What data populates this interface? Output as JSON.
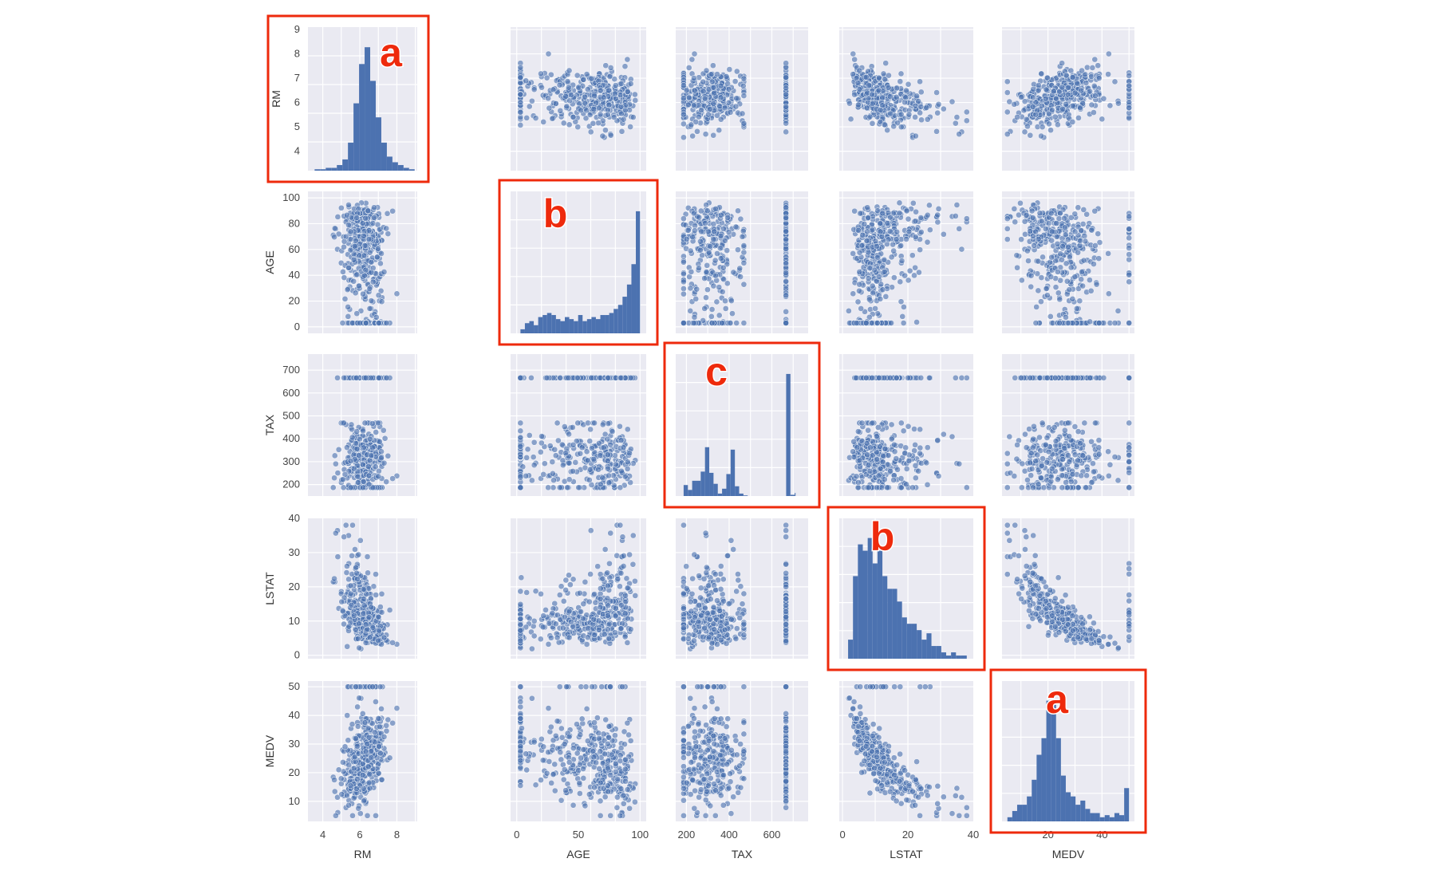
{
  "chart_data": {
    "type": "scatter",
    "variables": [
      "RM",
      "AGE",
      "TAX",
      "LSTAT",
      "MEDV"
    ],
    "axis_labels": {
      "RM": "RM",
      "AGE": "AGE",
      "TAX": "TAX",
      "LSTAT": "LSTAT",
      "MEDV": "MEDV"
    },
    "ranges": {
      "RM": [
        3.2,
        9.1
      ],
      "AGE": [
        -5,
        105
      ],
      "TAX": [
        150,
        770
      ],
      "LSTAT": [
        -1,
        40
      ],
      "MEDV": [
        3,
        52
      ]
    },
    "ticks": {
      "RM": [
        4,
        5,
        6,
        7,
        8,
        9
      ],
      "AGE": [
        0,
        20,
        40,
        60,
        80,
        100
      ],
      "TAX": [
        200,
        300,
        400,
        500,
        600,
        700
      ],
      "LSTAT": [
        0,
        10,
        20,
        30,
        40
      ],
      "MEDV": [
        10,
        20,
        30,
        40,
        50
      ]
    },
    "bottom_ticks": {
      "RM": [
        4,
        6,
        8
      ],
      "AGE": [
        0,
        50,
        100
      ],
      "TAX": [
        200,
        400,
        600
      ],
      "LSTAT": [
        0,
        20,
        40
      ],
      "MEDV": [
        20,
        40
      ]
    },
    "histograms": {
      "RM": {
        "edges": [
          3.56,
          3.86,
          4.16,
          4.46,
          4.76,
          5.06,
          5.36,
          5.66,
          5.96,
          6.26,
          6.56,
          6.86,
          7.16,
          7.46,
          7.76,
          8.06,
          8.36,
          8.66,
          8.96
        ],
        "counts": [
          1,
          1,
          2,
          2,
          4,
          8,
          20,
          48,
          76,
          88,
          64,
          38,
          20,
          10,
          6,
          4,
          2,
          1
        ]
      },
      "AGE": {
        "edges": [
          3,
          6.6,
          10.2,
          13.8,
          17.4,
          21,
          24.6,
          28.2,
          31.8,
          35.4,
          39,
          42.6,
          46.2,
          49.8,
          53.4,
          57,
          60.6,
          64.2,
          67.8,
          71.4,
          75,
          78.6,
          82.2,
          85.8,
          89.4,
          93,
          96.6,
          100
        ],
        "counts": [
          2,
          5,
          6,
          4,
          8,
          9,
          10,
          9,
          7,
          6,
          8,
          7,
          6,
          9,
          6,
          7,
          8,
          7,
          9,
          9,
          10,
          12,
          14,
          18,
          24,
          34,
          60
        ]
      },
      "TAX": {
        "edges": [
          187,
          207,
          227,
          247,
          267,
          287,
          307,
          327,
          347,
          367,
          387,
          407,
          427,
          447,
          467,
          487,
          507,
          527,
          547,
          567,
          587,
          607,
          627,
          647,
          667,
          687,
          707,
          711
        ],
        "counts": [
          18,
          10,
          25,
          25,
          40,
          80,
          38,
          20,
          4,
          12,
          36,
          76,
          16,
          4,
          1,
          0,
          0,
          0,
          0,
          0,
          0,
          0,
          0,
          0,
          200,
          2,
          5
        ]
      },
      "LSTAT": {
        "edges": [
          1.7,
          3.2,
          4.7,
          6.2,
          7.7,
          9.2,
          10.7,
          12.2,
          13.7,
          15.2,
          16.7,
          18.2,
          19.7,
          21.2,
          22.7,
          24.2,
          25.7,
          27.2,
          28.7,
          30.2,
          31.7,
          33.2,
          34.7,
          36.2,
          38
        ],
        "counts": [
          6,
          26,
          36,
          34,
          38,
          30,
          34,
          26,
          22,
          22,
          18,
          13,
          11,
          11,
          9,
          6,
          8,
          4,
          4,
          2,
          1,
          2,
          1,
          1
        ]
      },
      "MEDV": {
        "edges": [
          5,
          6.8,
          8.6,
          10.4,
          12.2,
          14,
          15.8,
          17.6,
          19.4,
          21.2,
          23,
          24.8,
          26.6,
          28.4,
          30.2,
          32,
          33.8,
          35.6,
          37.4,
          39.2,
          41,
          42.8,
          44.6,
          46.4,
          48.2,
          50
        ],
        "counts": [
          2,
          5,
          8,
          8,
          12,
          20,
          32,
          40,
          58,
          56,
          40,
          22,
          14,
          12,
          8,
          10,
          6,
          4,
          4,
          2,
          3,
          2,
          4,
          3,
          16
        ]
      }
    },
    "histogram_bins": 30,
    "marker_color": "#4c72b0",
    "background_color": "#eaeaf2",
    "grid": true,
    "grid_color": "#ffffff",
    "annotation_color": "#ee2a0c"
  },
  "annotations": [
    {
      "label": "a",
      "panel": "RM"
    },
    {
      "label": "b",
      "panel": "AGE"
    },
    {
      "label": "c",
      "panel": "TAX"
    },
    {
      "label": "b",
      "panel": "LSTAT"
    },
    {
      "label": "a",
      "panel": "MEDV"
    }
  ]
}
